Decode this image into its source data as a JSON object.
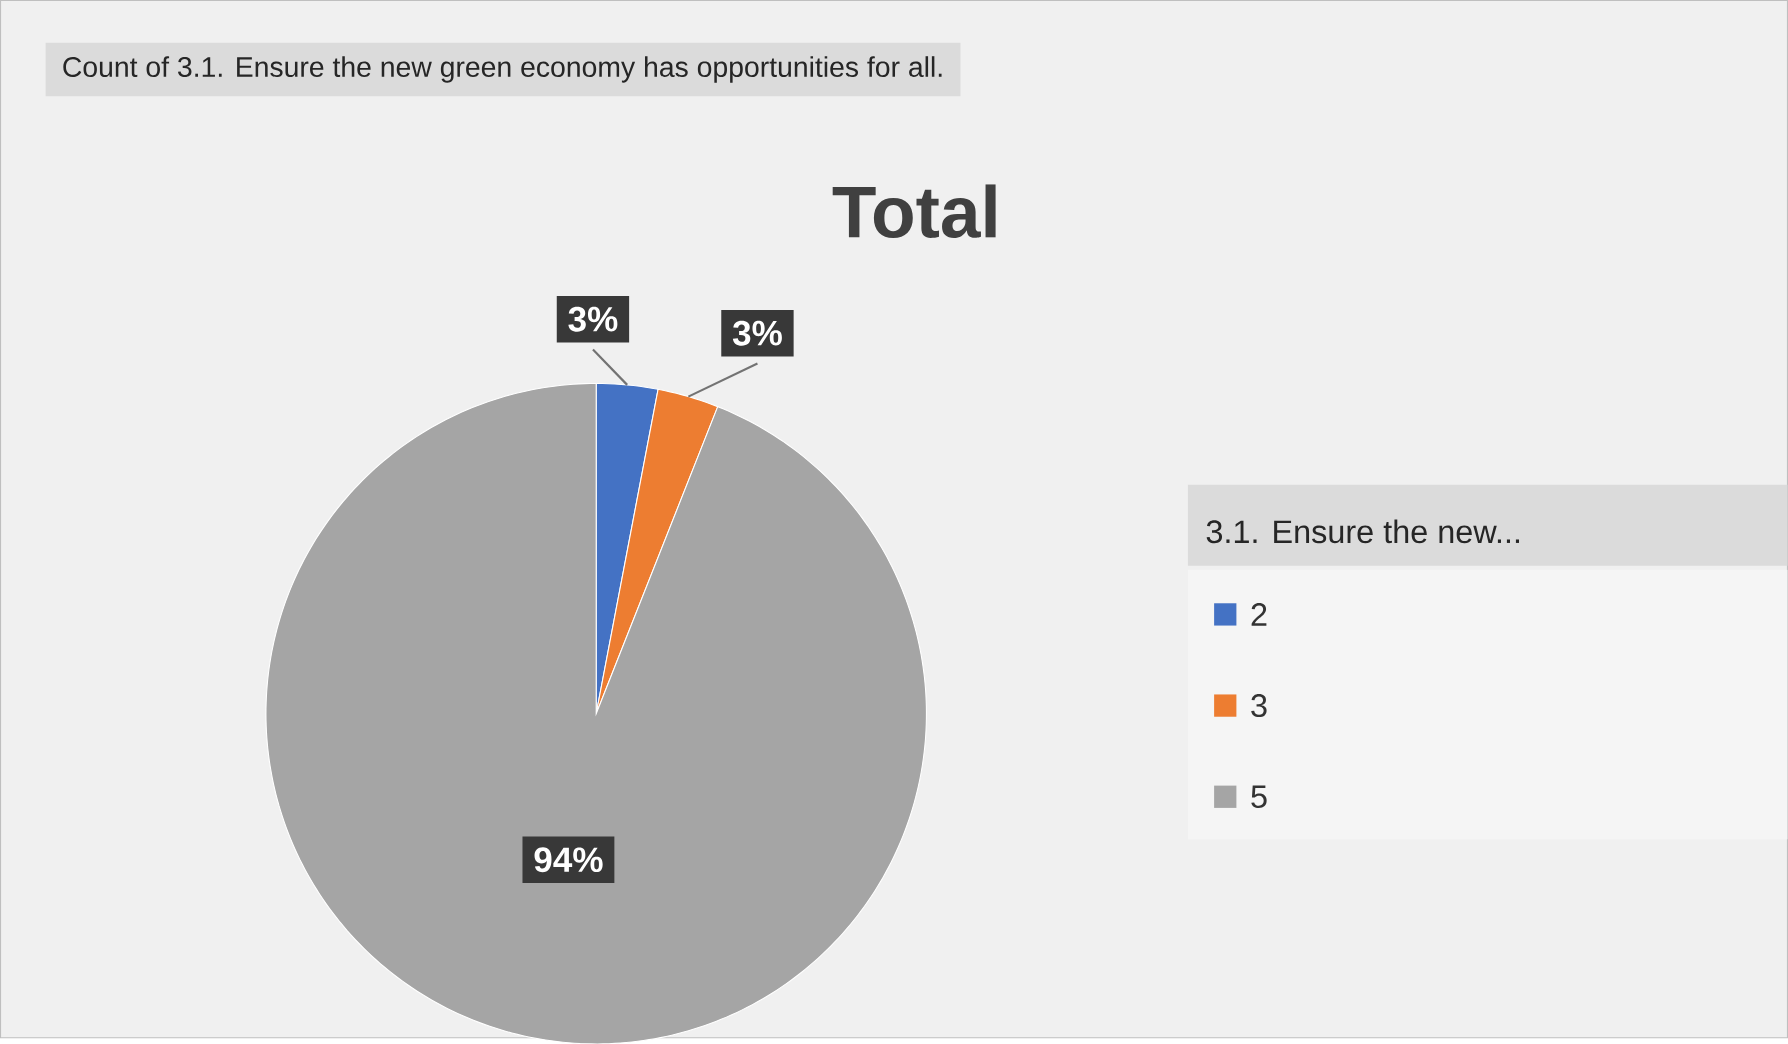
{
  "chart_data": {
    "type": "pie",
    "title": "Total",
    "annotations": [
      "Count of 3.1. Ensure the new green economy has opportunities for all."
    ],
    "legend_title": "3.1. Ensure the new...",
    "categories": [
      "2",
      "3",
      "5"
    ],
    "values": [
      3,
      3,
      94
    ],
    "value_labels": [
      "3%",
      "3%",
      "94%"
    ],
    "colors": [
      "#4472c4",
      "#ed7d31",
      "#a5a5a5"
    ],
    "legend": "right"
  }
}
